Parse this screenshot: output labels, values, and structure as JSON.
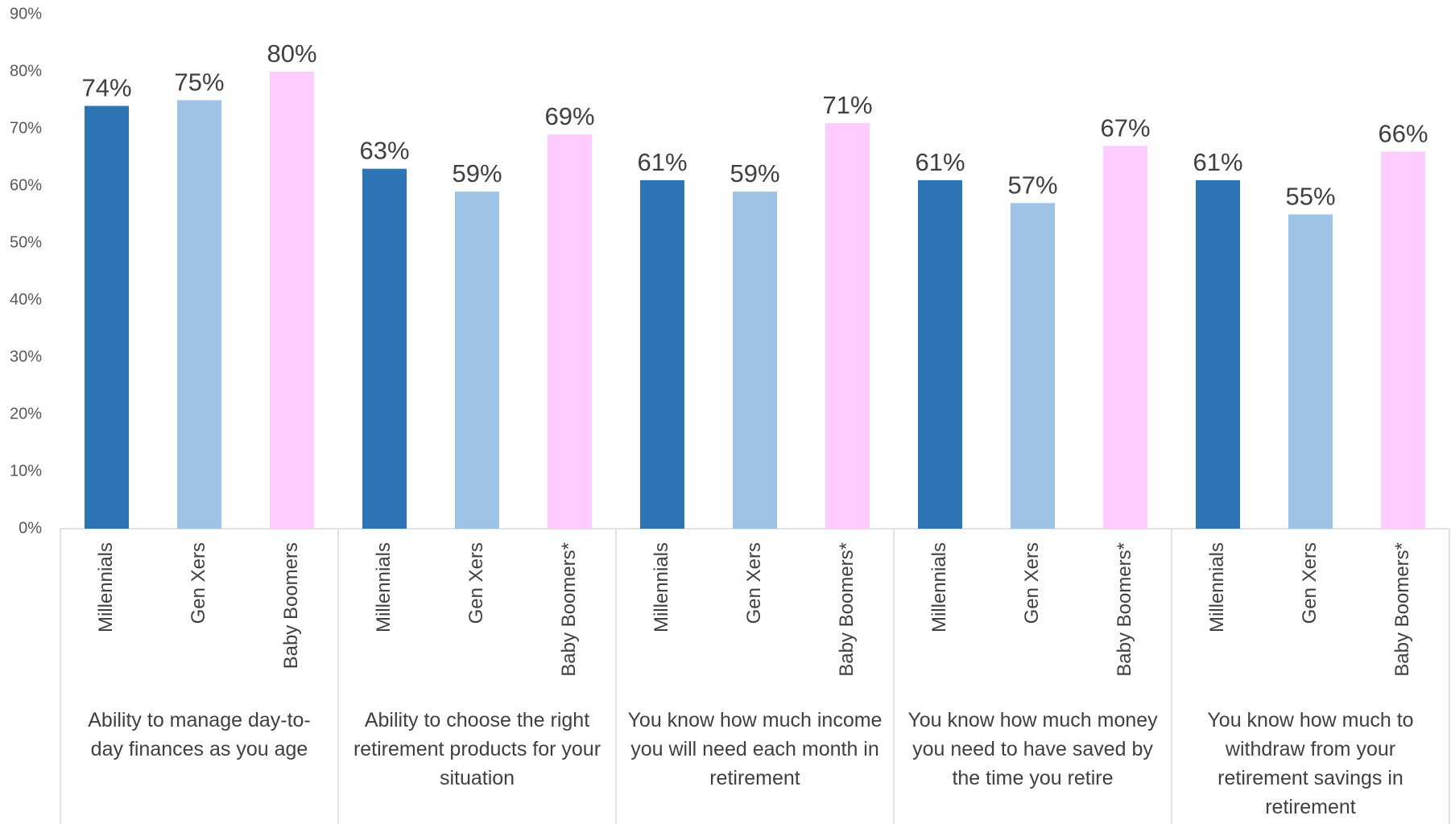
{
  "chart_data": {
    "type": "bar",
    "title": "",
    "xlabel": "",
    "ylabel": "",
    "ylim": [
      0,
      90
    ],
    "yticks": [
      "0%",
      "10%",
      "20%",
      "30%",
      "40%",
      "50%",
      "60%",
      "70%",
      "80%",
      "90%"
    ],
    "grid": false,
    "legend": "none",
    "groups": [
      {
        "label_lines": [
          "Ability to manage day-to-",
          "day finances as you age"
        ],
        "categories": [
          "Millennials",
          "Gen Xers",
          "Baby Boomers"
        ],
        "values": [
          74,
          75,
          80
        ],
        "data_labels": [
          "74%",
          "75%",
          "80%"
        ]
      },
      {
        "label_lines": [
          "Ability to choose the right",
          "retirement products for your",
          "situation"
        ],
        "categories": [
          "Millennials",
          "Gen Xers",
          "Baby Boomers*"
        ],
        "values": [
          63,
          59,
          69
        ],
        "data_labels": [
          "63%",
          "59%",
          "69%"
        ]
      },
      {
        "label_lines": [
          "You know how much income",
          "you will need each month in",
          "retirement"
        ],
        "categories": [
          "Millennials",
          "Gen Xers",
          "Baby Boomers*"
        ],
        "values": [
          61,
          59,
          71
        ],
        "data_labels": [
          "61%",
          "59%",
          "71%"
        ]
      },
      {
        "label_lines": [
          "You know how much money",
          "you need to have saved by",
          "the time you retire"
        ],
        "categories": [
          "Millennials",
          "Gen Xers",
          "Baby Boomers*"
        ],
        "values": [
          61,
          57,
          67
        ],
        "data_labels": [
          "61%",
          "57%",
          "67%"
        ]
      },
      {
        "label_lines": [
          "You know how much to",
          "withdraw from your",
          "retirement savings in",
          "retirement"
        ],
        "categories": [
          "Millennials",
          "Gen Xers",
          "Baby Boomers*"
        ],
        "values": [
          61,
          55,
          66
        ],
        "data_labels": [
          "61%",
          "55%",
          "66%"
        ]
      }
    ],
    "colors": [
      "#2E75B6",
      "#9DC3E6",
      "#FFCCFF"
    ]
  }
}
